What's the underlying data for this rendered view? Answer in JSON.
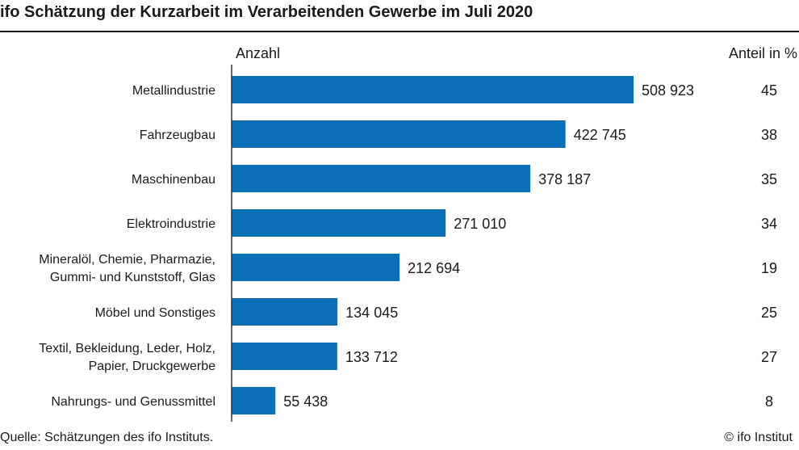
{
  "chart_data": {
    "type": "bar",
    "orientation": "horizontal",
    "title": "ifo Schätzung der Kurzarbeit im Verarbeitenden Gewerbe im Juli 2020",
    "xlabel": "Anzahl",
    "share_label": "Anteil in %",
    "categories": [
      [
        "Metallindustrie"
      ],
      [
        "Fahrzeugbau"
      ],
      [
        "Maschinenbau"
      ],
      [
        "Elektroindustrie"
      ],
      [
        "Mineralöl, Chemie, Pharmazie,",
        "Gummi- und Kunststoff, Glas"
      ],
      [
        "Möbel und Sonstiges"
      ],
      [
        "Textil, Bekleidung, Leder, Holz,",
        "Papier, Druckgewerbe"
      ],
      [
        "Nahrungs- und Genussmittel"
      ]
    ],
    "values": [
      508923,
      422745,
      378187,
      271010,
      212694,
      134045,
      133712,
      55438
    ],
    "value_labels": [
      "508 923",
      "422 745",
      "378 187",
      "271 010",
      "212 694",
      "134 045",
      "133 712",
      "55 438"
    ],
    "shares": [
      "45",
      "38",
      "35",
      "34",
      "19",
      "25",
      "27",
      "8"
    ],
    "bar_color": "#0b6fb8",
    "grid": false
  },
  "footer": {
    "source": "Quelle: Schätzungen des ifo Instituts.",
    "copyright": "© ifo Institut"
  }
}
